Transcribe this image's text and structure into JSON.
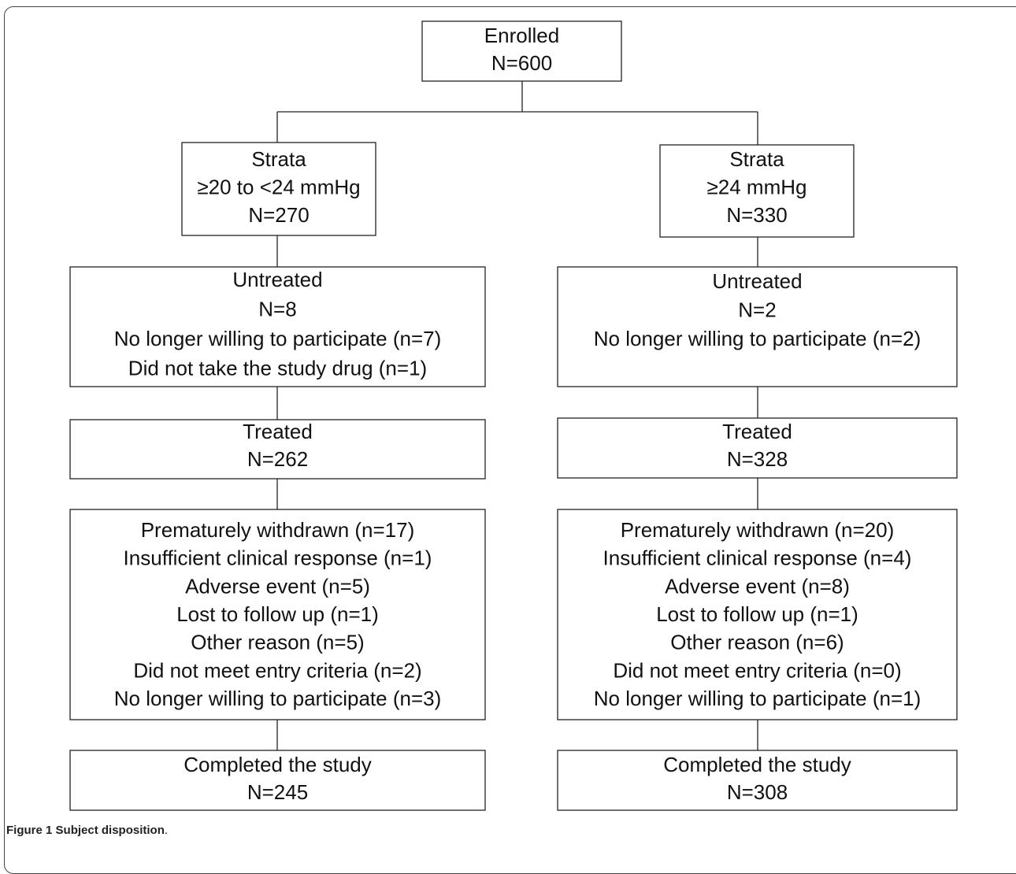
{
  "nodes": [
    {
      "lines": [
        "Enrolled",
        "N=600"
      ]
    },
    {
      "lines": [
        "Strata",
        "≥20 to <24 mmHg",
        "N=270"
      ]
    },
    {
      "lines": [
        "Strata",
        "≥24 mmHg",
        "N=330"
      ]
    },
    {
      "lines": [
        "Untreated",
        "N=8",
        "No longer willing to participate (n=7)",
        "Did not take the study drug (n=1)"
      ]
    },
    {
      "lines": [
        "Untreated",
        "N=2",
        "No longer willing to participate (n=2)"
      ]
    },
    {
      "lines": [
        "Treated",
        "N=262"
      ]
    },
    {
      "lines": [
        "Treated",
        "N=328"
      ]
    },
    {
      "lines": [
        "Prematurely withdrawn (n=17)",
        "Insufficient clinical response (n=1)",
        "Adverse event (n=5)",
        "Lost to follow up (n=1)",
        "Other reason (n=5)",
        "Did not meet entry criteria (n=2)",
        "No longer willing to participate (n=3)"
      ]
    },
    {
      "lines": [
        "Prematurely withdrawn (n=20)",
        "Insufficient clinical response (n=4)",
        "Adverse event (n=8)",
        "Lost to follow up (n=1)",
        "Other reason (n=6)",
        "Did not meet entry criteria (n=0)",
        "No longer willing to participate (n=1)"
      ]
    },
    {
      "lines": [
        "Completed the study",
        "N=245"
      ]
    },
    {
      "lines": [
        "Completed the study",
        "N=308"
      ]
    }
  ],
  "caption": {
    "label": "Figure 1",
    "text": "Subject disposition",
    "end": "."
  }
}
